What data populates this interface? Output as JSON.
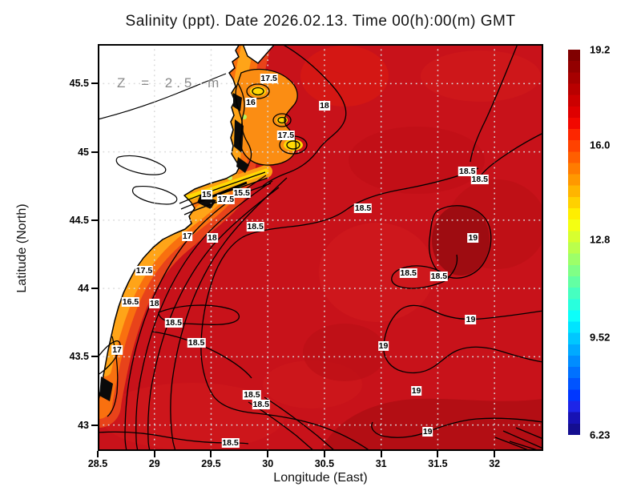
{
  "title": "Salinity (ppt). Date 2026.02.13. Time 00(h):00(m) GMT",
  "annotation": {
    "z_label": "Z = 2.5 m"
  },
  "axes": {
    "x": {
      "label": "Longitude (East)",
      "tick_labels": [
        "28.5",
        "29",
        "29.5",
        "30",
        "30.5",
        "31",
        "31.5",
        "32"
      ],
      "tick_values": [
        28.5,
        29,
        29.5,
        30,
        30.5,
        31,
        31.5,
        32
      ]
    },
    "y": {
      "label": "Latitude (North)",
      "tick_labels": [
        "45.5",
        "45",
        "44.5",
        "44",
        "43.5",
        "43"
      ],
      "tick_values": [
        45.5,
        45,
        44.5,
        44,
        43.5,
        43
      ]
    }
  },
  "colorbar": {
    "min": 6.23,
    "max": 19.2,
    "tick_labels": [
      "19.2",
      "16.0",
      "12.8",
      "9.52",
      "6.23"
    ],
    "tick_values": [
      19.2,
      16.0,
      12.8,
      9.52,
      6.23
    ],
    "stops_top_to_bottom": [
      "#800000",
      "#930000",
      "#a60000",
      "#b90000",
      "#cc0000",
      "#df0000",
      "#f20800",
      "#fd2600",
      "#ff4200",
      "#ff5f00",
      "#ff7c00",
      "#ff9800",
      "#ffb500",
      "#ffd100",
      "#ffee00",
      "#f4ff12",
      "#d7ff2f",
      "#baff4c",
      "#9dff69",
      "#80ff86",
      "#63ffa3",
      "#46ffc0",
      "#29ffdd",
      "#0cfffa",
      "#00e4ff",
      "#00c7ff",
      "#00aaff",
      "#008dff",
      "#0071ff",
      "#0054ff",
      "#0037ff",
      "#1d25e8",
      "#1712b4",
      "#140e90"
    ]
  },
  "chart_data": {
    "type": "heatmap",
    "variable": "Salinity (ppt)",
    "depth_annotation": "Z = 2.5 m",
    "date": "2026.02.13",
    "time": "00(h):00(m) GMT",
    "xlabel": "Longitude (East)",
    "ylabel": "Latitude (North)",
    "xlim": [
      28.5,
      32.43
    ],
    "ylim": [
      42.81,
      45.79
    ],
    "value_range": [
      6.23,
      19.2
    ],
    "grid": true,
    "legend_position": "right-colorbar",
    "contour_labels": [
      {
        "value": 17.5,
        "lon": 30.01,
        "lat": 45.54
      },
      {
        "value": 16,
        "lon": 29.85,
        "lat": 45.36
      },
      {
        "value": 18,
        "lon": 30.5,
        "lat": 45.34
      },
      {
        "value": 17.5,
        "lon": 30.16,
        "lat": 45.12
      },
      {
        "value": 18.5,
        "lon": 31.76,
        "lat": 44.86
      },
      {
        "value": 18.5,
        "lon": 31.87,
        "lat": 44.8
      },
      {
        "value": 15,
        "lon": 29.46,
        "lat": 44.69
      },
      {
        "value": 15.5,
        "lon": 29.77,
        "lat": 44.7
      },
      {
        "value": 17.5,
        "lon": 29.63,
        "lat": 44.65
      },
      {
        "value": 18.5,
        "lon": 30.84,
        "lat": 44.59
      },
      {
        "value": 18.5,
        "lon": 29.89,
        "lat": 44.45
      },
      {
        "value": 17,
        "lon": 29.29,
        "lat": 44.38
      },
      {
        "value": 18,
        "lon": 29.51,
        "lat": 44.37
      },
      {
        "value": 19,
        "lon": 31.81,
        "lat": 44.37
      },
      {
        "value": 17.5,
        "lon": 28.91,
        "lat": 44.13
      },
      {
        "value": 18.5,
        "lon": 31.24,
        "lat": 44.11
      },
      {
        "value": 18.5,
        "lon": 31.51,
        "lat": 44.09
      },
      {
        "value": 16.5,
        "lon": 28.79,
        "lat": 43.9
      },
      {
        "value": 18,
        "lon": 29.0,
        "lat": 43.89
      },
      {
        "value": 19,
        "lon": 31.79,
        "lat": 43.77
      },
      {
        "value": 18.5,
        "lon": 29.17,
        "lat": 43.75
      },
      {
        "value": 18.5,
        "lon": 29.37,
        "lat": 43.6
      },
      {
        "value": 19,
        "lon": 31.02,
        "lat": 43.58
      },
      {
        "value": 17,
        "lon": 28.67,
        "lat": 43.55
      },
      {
        "value": 19,
        "lon": 31.31,
        "lat": 43.25
      },
      {
        "value": 18.5,
        "lon": 29.86,
        "lat": 43.22
      },
      {
        "value": 18.5,
        "lon": 29.94,
        "lat": 43.15
      },
      {
        "value": 19,
        "lon": 31.41,
        "lat": 42.95
      },
      {
        "value": 18.5,
        "lon": 29.67,
        "lat": 42.87
      }
    ]
  },
  "colors": {
    "sea_base": "#c8121a",
    "sea_dark": "#9e0c11",
    "coast_orange": "#f9700f",
    "coast_yellow": "#ffd904",
    "land": "#ffffff",
    "contour": "#000000",
    "grid_dots": "#dadada",
    "annotation_gray": "#8a8a8a"
  }
}
